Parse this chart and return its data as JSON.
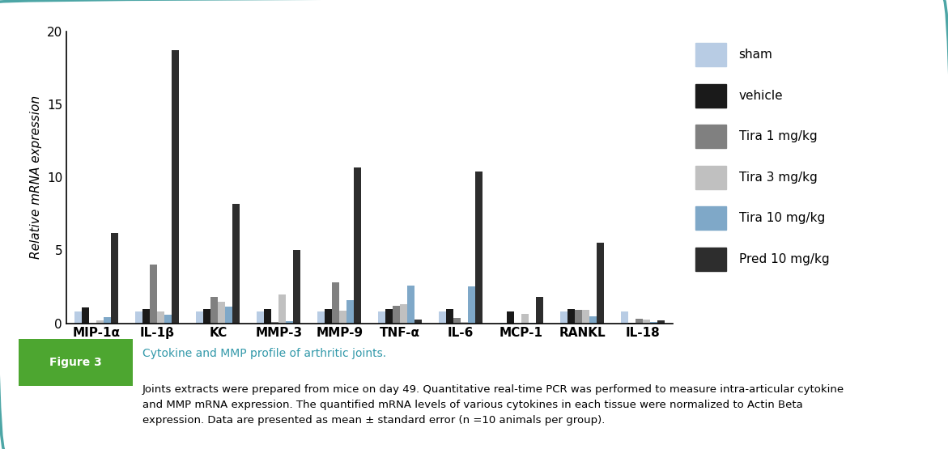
{
  "categories": [
    "MIP-1α",
    "IL-1β",
    "KC",
    "MMP-3",
    "MMP-9",
    "TNF-α",
    "IL-6",
    "MCP-1",
    "RANKL",
    "IL-18"
  ],
  "series": {
    "sham": [
      0.8,
      0.8,
      0.8,
      0.8,
      0.8,
      0.8,
      0.8,
      0.05,
      0.8,
      0.8
    ],
    "vehicle": [
      1.1,
      1.0,
      1.0,
      1.0,
      1.0,
      1.0,
      1.0,
      0.8,
      1.0,
      0.05
    ],
    "tira1": [
      0.0,
      4.0,
      1.8,
      0.1,
      2.8,
      1.2,
      0.35,
      0.0,
      0.9,
      0.3
    ],
    "tira3": [
      0.2,
      0.8,
      1.5,
      1.95,
      0.85,
      1.3,
      0.1,
      0.65,
      0.9,
      0.25
    ],
    "tira10": [
      0.4,
      0.6,
      1.15,
      0.15,
      1.6,
      2.6,
      2.55,
      0.05,
      0.45,
      0.1
    ],
    "pred10": [
      6.2,
      18.7,
      8.2,
      5.0,
      10.7,
      0.25,
      10.4,
      1.8,
      5.5,
      0.2
    ]
  },
  "colors": {
    "sham": "#b8cce4",
    "vehicle": "#1a1a1a",
    "tira1": "#808080",
    "tira3": "#c0c0c0",
    "tira10": "#7fa8c8",
    "pred10": "#2d2d2d"
  },
  "legend_labels": {
    "sham": "sham",
    "vehicle": "vehicle",
    "tira1": "Tira 1 mg/kg",
    "tira3": "Tira 3 mg/kg",
    "tira10": "Tira 10 mg/kg",
    "pred10": "Pred 10 mg/kg"
  },
  "ylabel": "Relative mRNA expression",
  "ylim": [
    0,
    20
  ],
  "yticks": [
    0,
    5,
    10,
    15,
    20
  ],
  "background_color": "#ffffff",
  "border_color": "#4da6a6",
  "figure_label": "Figure 3",
  "figure_label_bg": "#4da630",
  "caption_title": "Cytokine and MMP profile of arthritic joints.",
  "caption_body": "Joints extracts were prepared from mice on day 49. Quantitative real-time PCR was performed to measure intra-articular cytokine\nand MMP mRNA expression. The quantified mRNA levels of various cytokines in each tissue were normalized to Actin Beta\nexpression. Data are presented as mean ± standard error (n =10 animals per group)."
}
